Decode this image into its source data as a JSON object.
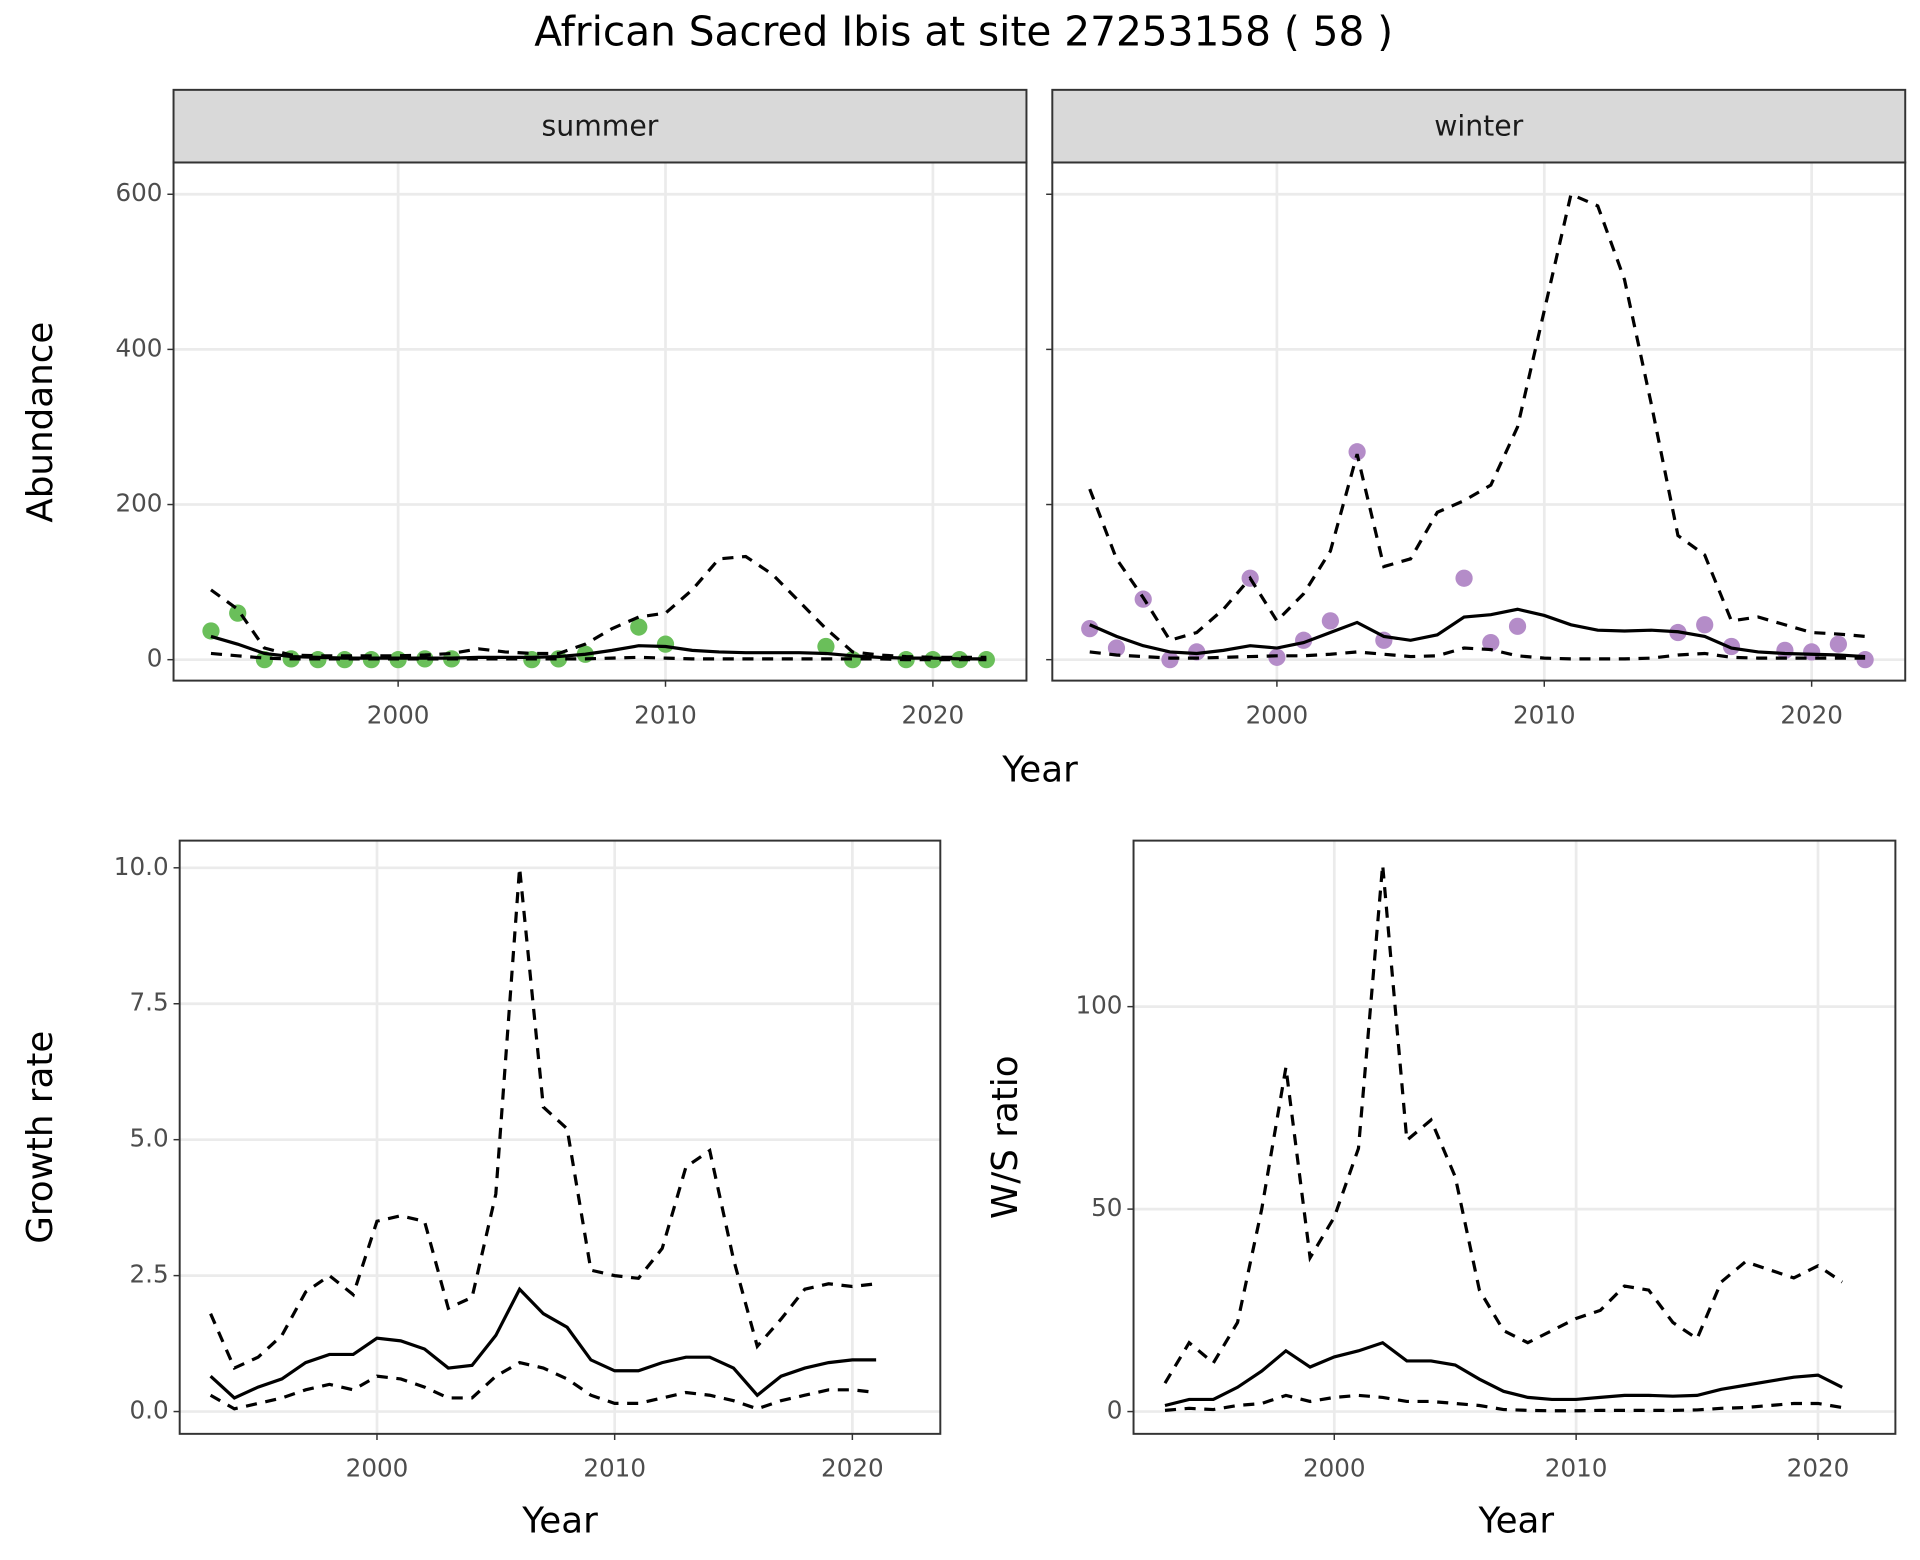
{
  "title": "African Sacred Ibis at site 27253158 ( 58 )",
  "chart_data": [
    {
      "type": "line",
      "strip": "summer",
      "ylabel": "Abundance",
      "xlabel": "Year",
      "grid": true,
      "xlim": [
        1991.6,
        2023.5
      ],
      "ylim": [
        -27,
        641
      ],
      "xticks": [
        2000,
        2010,
        2020
      ],
      "yticks": [
        0,
        200,
        400,
        600
      ],
      "x": [
        1993,
        1994,
        1995,
        1996,
        1997,
        1998,
        1999,
        2000,
        2001,
        2002,
        2003,
        2004,
        2005,
        2006,
        2007,
        2008,
        2009,
        2010,
        2011,
        2012,
        2013,
        2014,
        2015,
        2016,
        2017,
        2018,
        2019,
        2020,
        2021,
        2022
      ],
      "series": [
        {
          "style": "points",
          "color": "#6abf5a",
          "values": [
            37,
            60,
            0,
            1,
            0,
            0,
            0,
            0,
            1,
            1,
            null,
            null,
            0,
            1,
            7,
            null,
            42,
            20,
            null,
            null,
            null,
            null,
            null,
            17,
            0,
            null,
            0,
            0,
            0,
            0
          ]
        },
        {
          "style": "solid",
          "color": "#000000",
          "values": [
            30,
            20,
            8,
            4,
            3,
            2,
            2,
            2,
            2,
            2,
            3,
            3,
            3,
            4,
            7,
            12,
            18,
            17,
            12,
            10,
            9,
            9,
            9,
            8,
            5,
            3,
            2,
            2,
            1,
            1
          ]
        },
        {
          "style": "dashed",
          "color": "#000000",
          "values": [
            90,
            65,
            15,
            6,
            5,
            5,
            5,
            5,
            6,
            8,
            14,
            10,
            8,
            8,
            20,
            40,
            55,
            60,
            90,
            130,
            133,
            110,
            75,
            40,
            10,
            6,
            4,
            3,
            3,
            3
          ]
        },
        {
          "style": "dashed",
          "color": "#000000",
          "values": [
            8,
            5,
            2,
            1,
            1,
            1,
            1,
            1,
            1,
            1,
            1,
            1,
            1,
            1,
            1,
            2,
            3,
            2,
            1,
            1,
            1,
            1,
            1,
            1,
            1,
            1,
            0,
            0,
            0,
            0
          ]
        }
      ]
    },
    {
      "type": "line",
      "strip": "winter",
      "grid": true,
      "show_ytick_labels": false,
      "xlim": [
        1991.6,
        2023.5
      ],
      "ylim": [
        -27,
        641
      ],
      "xticks": [
        2000,
        2010,
        2020
      ],
      "yticks": [
        0,
        200,
        400,
        600
      ],
      "x": [
        1993,
        1994,
        1995,
        1996,
        1997,
        1998,
        1999,
        2000,
        2001,
        2002,
        2003,
        2004,
        2005,
        2006,
        2007,
        2008,
        2009,
        2010,
        2011,
        2012,
        2013,
        2014,
        2015,
        2016,
        2017,
        2018,
        2019,
        2020,
        2021,
        2022
      ],
      "series": [
        {
          "style": "points",
          "color": "#b48cc8",
          "values": [
            40,
            15,
            78,
            0,
            10,
            null,
            105,
            3,
            25,
            50,
            268,
            25,
            null,
            null,
            105,
            22,
            43,
            null,
            null,
            null,
            null,
            null,
            35,
            45,
            17,
            null,
            12,
            10,
            20,
            0
          ]
        },
        {
          "style": "solid",
          "color": "#000000",
          "values": [
            45,
            30,
            18,
            10,
            8,
            12,
            18,
            15,
            22,
            35,
            48,
            30,
            25,
            32,
            55,
            58,
            65,
            57,
            45,
            38,
            37,
            38,
            36,
            30,
            15,
            10,
            8,
            7,
            6,
            4
          ]
        },
        {
          "style": "dashed",
          "color": "#000000",
          "values": [
            220,
            130,
            80,
            25,
            35,
            65,
            105,
            50,
            85,
            140,
            265,
            120,
            130,
            190,
            205,
            225,
            300,
            450,
            600,
            585,
            490,
            330,
            160,
            135,
            50,
            55,
            45,
            35,
            33,
            30
          ]
        },
        {
          "style": "dashed",
          "color": "#000000",
          "values": [
            10,
            6,
            4,
            2,
            2,
            3,
            4,
            5,
            5,
            7,
            10,
            7,
            4,
            5,
            15,
            13,
            5,
            2,
            1,
            1,
            1,
            2,
            6,
            8,
            3,
            2,
            2,
            2,
            2,
            2
          ]
        }
      ]
    },
    {
      "type": "line",
      "ylabel": "Growth rate",
      "xlabel": "Year",
      "grid": true,
      "xlim": [
        1991.7,
        2023.7
      ],
      "ylim": [
        -0.41,
        10.5
      ],
      "xticks": [
        2000,
        2010,
        2020
      ],
      "yticks": [
        {
          "value": 0,
          "label": "0.0"
        },
        2.5,
        {
          "value": 5,
          "label": "5.0"
        },
        7.5,
        {
          "value": 10,
          "label": "10.0"
        }
      ],
      "x": [
        1993,
        1994,
        1995,
        1996,
        1997,
        1998,
        1999,
        2000,
        2001,
        2002,
        2003,
        2004,
        2005,
        2006,
        2007,
        2008,
        2009,
        2010,
        2011,
        2012,
        2013,
        2014,
        2015,
        2016,
        2017,
        2018,
        2019,
        2020,
        2021
      ],
      "series": [
        {
          "style": "solid",
          "color": "#000000",
          "values": [
            0.65,
            0.25,
            0.45,
            0.6,
            0.9,
            1.05,
            1.05,
            1.35,
            1.3,
            1.15,
            0.8,
            0.85,
            1.4,
            2.25,
            1.8,
            1.55,
            0.95,
            0.75,
            0.75,
            0.9,
            1.0,
            1.0,
            0.8,
            0.3,
            0.65,
            0.8,
            0.9,
            0.95,
            0.95
          ]
        },
        {
          "style": "dashed",
          "color": "#000000",
          "values": [
            1.8,
            0.8,
            1.0,
            1.4,
            2.2,
            2.5,
            2.15,
            3.5,
            3.6,
            3.5,
            1.9,
            2.1,
            4.0,
            10.0,
            5.6,
            5.2,
            2.6,
            2.5,
            2.45,
            3.0,
            4.5,
            4.8,
            2.8,
            1.2,
            1.7,
            2.25,
            2.35,
            2.3,
            2.35
          ]
        },
        {
          "style": "dashed",
          "color": "#000000",
          "values": [
            0.3,
            0.05,
            0.15,
            0.25,
            0.4,
            0.5,
            0.4,
            0.65,
            0.6,
            0.45,
            0.25,
            0.25,
            0.65,
            0.9,
            0.8,
            0.6,
            0.3,
            0.15,
            0.15,
            0.25,
            0.35,
            0.3,
            0.2,
            0.05,
            0.2,
            0.3,
            0.4,
            0.4,
            0.35
          ]
        }
      ]
    },
    {
      "type": "line",
      "ylabel": "W/S ratio",
      "xlabel": "Year",
      "grid": true,
      "xlim": [
        1991.7,
        2023.2
      ],
      "ylim": [
        -5.5,
        141
      ],
      "xticks": [
        2000,
        2010,
        2020
      ],
      "yticks": [
        0,
        50,
        100
      ],
      "x": [
        1993,
        1994,
        1995,
        1996,
        1997,
        1998,
        1999,
        2000,
        2001,
        2002,
        2003,
        2004,
        2005,
        2006,
        2007,
        2008,
        2009,
        2010,
        2011,
        2012,
        2013,
        2014,
        2015,
        2016,
        2017,
        2018,
        2019,
        2020,
        2021
      ],
      "series": [
        {
          "style": "solid",
          "color": "#000000",
          "values": [
            1.5,
            3,
            3,
            6,
            10,
            15,
            11,
            13.5,
            15,
            17,
            12.5,
            12.5,
            11.5,
            8,
            5,
            3.5,
            3,
            3,
            3.5,
            4,
            4,
            3.8,
            4,
            5.5,
            6.5,
            7.5,
            8.5,
            9,
            6
          ]
        },
        {
          "style": "dashed",
          "color": "#000000",
          "values": [
            7,
            17,
            12,
            22,
            50,
            85,
            38,
            48,
            65,
            135,
            67,
            72,
            58,
            30,
            20,
            17,
            20,
            23,
            25,
            31,
            30,
            22,
            18,
            32,
            37,
            35,
            33,
            36,
            32
          ]
        },
        {
          "style": "dashed",
          "color": "#000000",
          "values": [
            0.3,
            0.8,
            0.5,
            1.5,
            2,
            4,
            2.5,
            3.5,
            4,
            3.5,
            2.5,
            2.5,
            2,
            1.5,
            0.5,
            0.3,
            0.2,
            0.2,
            0.3,
            0.3,
            0.3,
            0.3,
            0.4,
            0.8,
            1,
            1.5,
            2,
            2,
            1
          ]
        }
      ]
    }
  ]
}
